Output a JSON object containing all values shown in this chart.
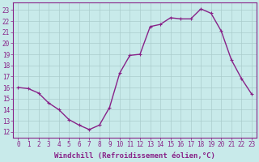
{
  "x": [
    0,
    1,
    2,
    3,
    4,
    5,
    6,
    7,
    8,
    9,
    10,
    11,
    12,
    13,
    14,
    15,
    16,
    17,
    18,
    19,
    20,
    21,
    22,
    23
  ],
  "y": [
    16.0,
    15.9,
    15.5,
    14.6,
    14.0,
    13.1,
    12.6,
    12.2,
    12.6,
    14.2,
    17.3,
    18.9,
    19.0,
    21.5,
    21.7,
    22.3,
    22.2,
    22.2,
    23.1,
    22.7,
    21.1,
    18.5,
    16.8,
    15.4
  ],
  "line_color": "#882288",
  "marker": "+",
  "marker_size": 3,
  "bg_color": "#c8eaea",
  "grid_color": "#aacccc",
  "xlabel": "Windchill (Refroidissement éolien,°C)",
  "xlabel_fontsize": 6.5,
  "ytick_labels": [
    "12",
    "13",
    "14",
    "15",
    "16",
    "17",
    "18",
    "19",
    "20",
    "21",
    "22",
    "23"
  ],
  "ytick_values": [
    12,
    13,
    14,
    15,
    16,
    17,
    18,
    19,
    20,
    21,
    22,
    23
  ],
  "ylim": [
    11.5,
    23.7
  ],
  "xlim": [
    -0.5,
    23.5
  ],
  "tick_fontsize": 5.5,
  "line_width": 1.0
}
